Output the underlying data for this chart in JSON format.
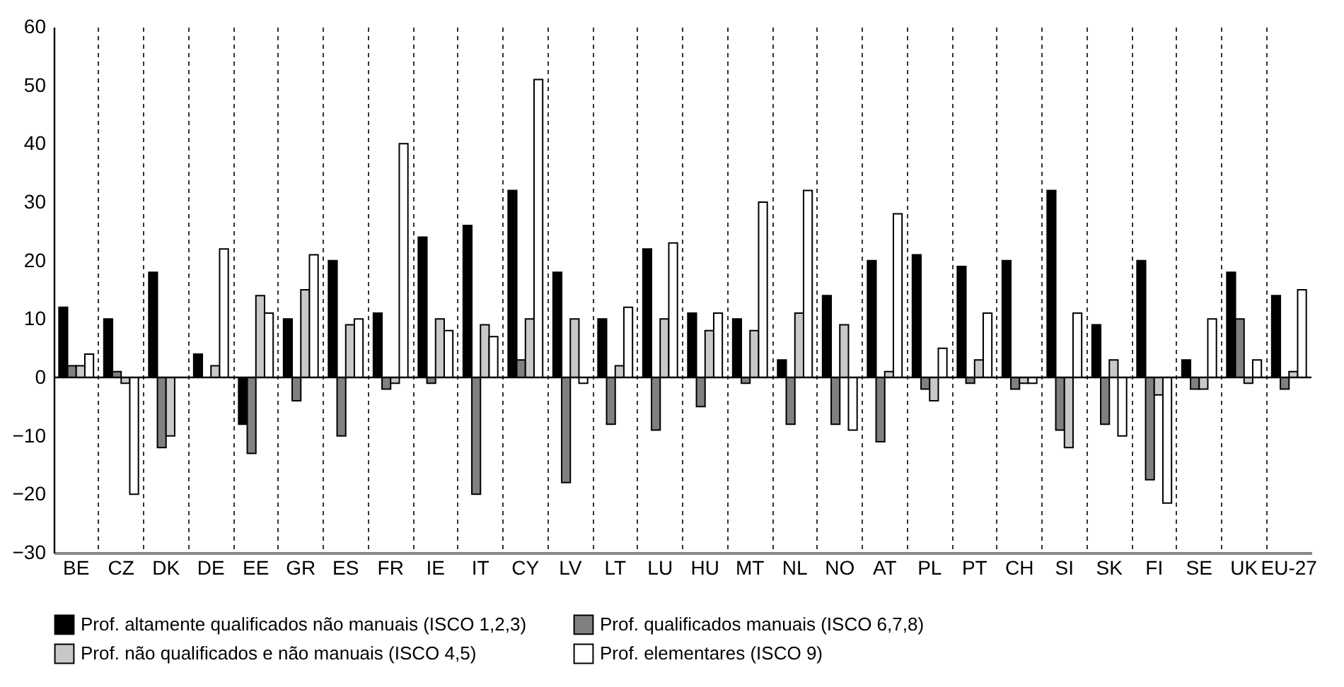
{
  "chart_data": {
    "type": "bar",
    "categories": [
      "BE",
      "CZ",
      "DK",
      "DE",
      "EE",
      "GR",
      "ES",
      "FR",
      "IE",
      "IT",
      "CY",
      "LV",
      "LT",
      "LU",
      "HU",
      "MT",
      "NL",
      "NO",
      "AT",
      "PL",
      "PT",
      "CH",
      "SI",
      "SK",
      "FI",
      "SE",
      "UK",
      "EU-27"
    ],
    "series": [
      {
        "name": "Prof. altamente qualificados não manuais (ISCO 1,2,3)",
        "color": "#000000",
        "values": [
          12,
          10,
          18,
          4,
          -8,
          10,
          20,
          11,
          24,
          26,
          32,
          18,
          10,
          22,
          11,
          10,
          3,
          14,
          20,
          21,
          19,
          20,
          32,
          9,
          20,
          3,
          18,
          14
        ]
      },
      {
        "name": "Prof. qualificados manuais (ISCO 6,7,8)",
        "color": "#808080",
        "values": [
          2,
          1,
          -12,
          null,
          -13,
          -4,
          -10,
          -2,
          -1,
          -20,
          3,
          -18,
          -8,
          -9,
          -5,
          -1,
          -8,
          -8,
          -11,
          -2,
          -1,
          -2,
          -9,
          -8,
          -17.5,
          -2,
          10,
          -2
        ]
      },
      {
        "name": "Prof. não qualificados e não manuais (ISCO 4,5)",
        "color": "#c8c8c8",
        "values": [
          2,
          -1,
          -10,
          2,
          14,
          15,
          9,
          -1,
          10,
          9,
          10,
          10,
          2,
          10,
          8,
          8,
          11,
          9,
          1,
          -4,
          3,
          -1,
          -12,
          3,
          -3,
          -2,
          -1,
          1
        ]
      },
      {
        "name": "Prof. elementares (ISCO 9)",
        "color": "#ffffff",
        "values": [
          4,
          -20,
          null,
          22,
          11,
          21,
          10,
          40,
          8,
          7,
          51,
          -1,
          12,
          23,
          11,
          30,
          32,
          -9,
          28,
          5,
          11,
          -1,
          11,
          -10,
          -21.5,
          10,
          3,
          15
        ]
      }
    ],
    "ylim": [
      -30,
      60
    ],
    "yticks": [
      -30,
      -20,
      -10,
      0,
      10,
      20,
      30,
      40,
      50,
      60
    ],
    "ref_lines": [
      {
        "axis": "y",
        "value": 0
      }
    ],
    "grid": "x",
    "legend": "bottom"
  }
}
